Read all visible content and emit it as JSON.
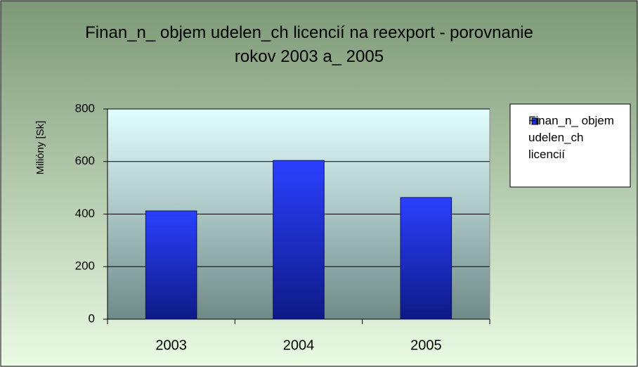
{
  "chart_data": {
    "type": "bar",
    "title": "Finan_n_ objem udelen_ch licencií na reexport - porovnanie rokov 2003 a_ 2005",
    "y_label": "Milióny [Sk]",
    "categories": [
      "2003",
      "2004",
      "2005"
    ],
    "series": [
      {
        "name": "Finan_n_ objem udelen_ch licencií",
        "color": "#1a2fe0",
        "values": [
          412,
          604,
          463
        ]
      }
    ],
    "ylim": [
      0,
      800
    ],
    "yticks": [
      0,
      200,
      400,
      600,
      800
    ],
    "grid": true,
    "legend": "right"
  }
}
